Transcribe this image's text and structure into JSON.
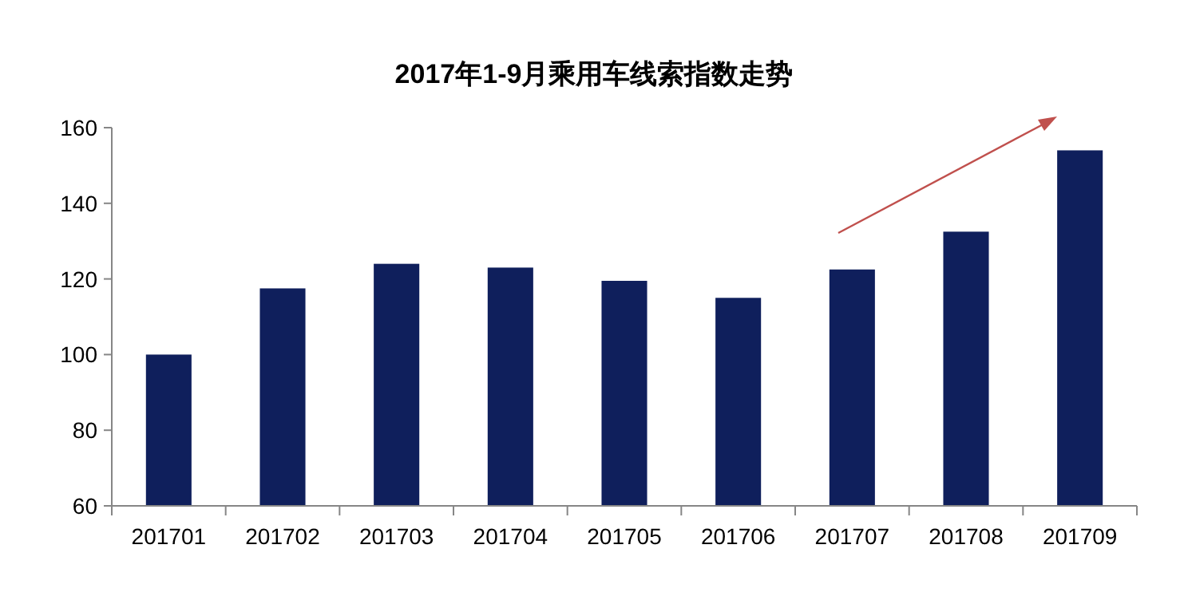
{
  "chart_data": {
    "type": "bar",
    "title": "2017年1-9月乘用车线索指数走势",
    "categories": [
      "201701",
      "201702",
      "201703",
      "201704",
      "201705",
      "201706",
      "201707",
      "201708",
      "201709"
    ],
    "values": [
      100,
      117.5,
      124,
      123,
      119.5,
      115,
      122.5,
      132.5,
      154
    ],
    "color": "#0f1f5c",
    "ylim": [
      60,
      160
    ],
    "yticks": [
      60,
      80,
      100,
      120,
      140,
      160
    ]
  }
}
